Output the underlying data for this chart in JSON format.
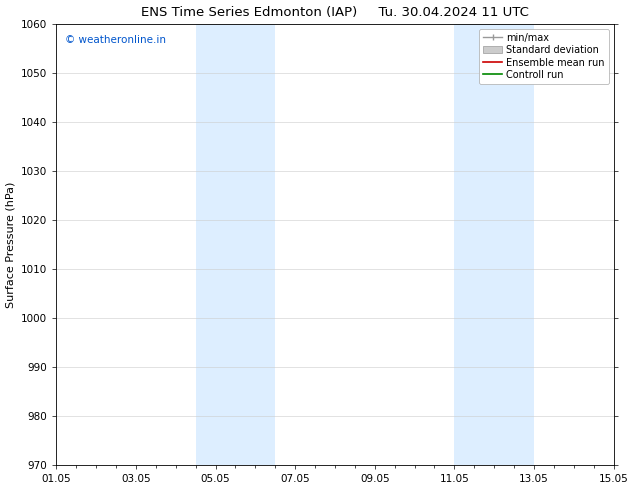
{
  "title": "ENS Time Series Edmonton (IAP)     Tu. 30.04.2024 11 UTC",
  "ylabel": "Surface Pressure (hPa)",
  "ylim": [
    970,
    1060
  ],
  "yticks": [
    970,
    980,
    990,
    1000,
    1010,
    1020,
    1030,
    1040,
    1050,
    1060
  ],
  "xlim": [
    0,
    14
  ],
  "xtick_labels": [
    "01.05",
    "03.05",
    "05.05",
    "07.05",
    "09.05",
    "11.05",
    "13.05",
    "15.05"
  ],
  "xtick_positions": [
    0,
    2,
    4,
    6,
    8,
    10,
    12,
    14
  ],
  "shaded_bands": [
    {
      "xstart": 3.5,
      "xend": 5.5
    },
    {
      "xstart": 10.0,
      "xend": 12.0
    }
  ],
  "shaded_color": "#ddeeff",
  "watermark_text": "© weatheronline.in",
  "watermark_color": "#0055cc",
  "legend_items": [
    {
      "label": "min/max",
      "type": "minmax",
      "color": "#999999"
    },
    {
      "label": "Standard deviation",
      "type": "patch",
      "color": "#cccccc"
    },
    {
      "label": "Ensemble mean run",
      "type": "line",
      "color": "#cc0000"
    },
    {
      "label": "Controll run",
      "type": "line",
      "color": "#008800"
    }
  ],
  "bg_color": "#ffffff",
  "grid_color": "#cccccc",
  "title_fontsize": 9.5,
  "axis_label_fontsize": 8,
  "tick_fontsize": 7.5,
  "watermark_fontsize": 7.5,
  "legend_fontsize": 7
}
